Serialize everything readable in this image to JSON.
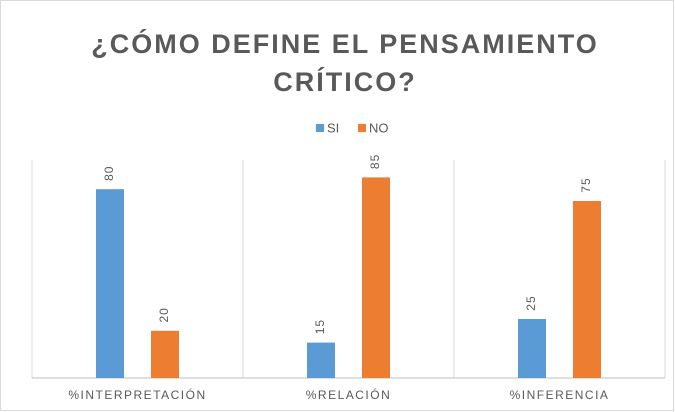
{
  "chart_data": {
    "type": "bar",
    "title": [
      "¿CÓMO DEFINE EL PENSAMIENTO",
      "CRÍTICO?"
    ],
    "categories": [
      "%INTERPRETACIÓN",
      "%RELACIÓN",
      "%INFERENCIA"
    ],
    "series": [
      {
        "name": "SI",
        "color": "#5b9bd5",
        "values": [
          80,
          15,
          25
        ]
      },
      {
        "name": "NO",
        "color": "#ed7d31",
        "values": [
          20,
          85,
          75
        ]
      }
    ],
    "ylim": [
      0,
      100
    ],
    "legend": "top"
  }
}
